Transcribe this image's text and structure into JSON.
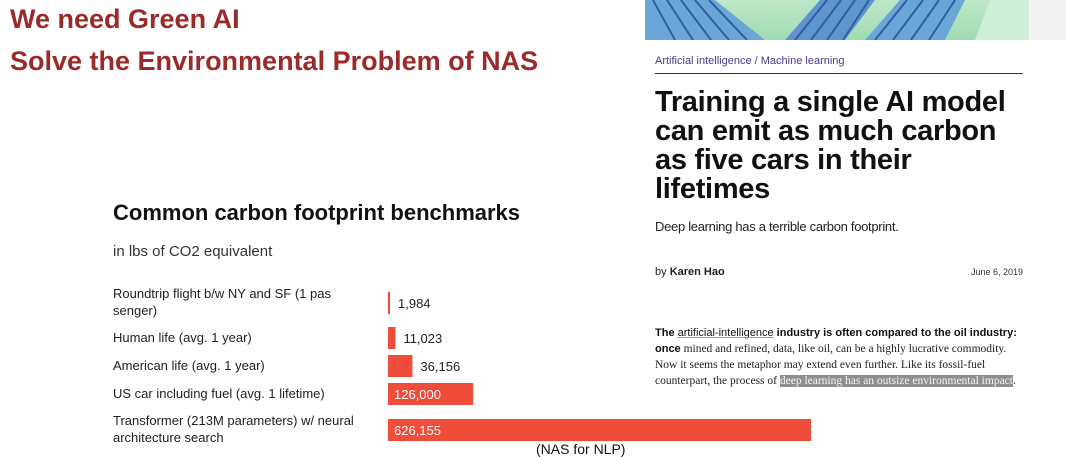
{
  "slide": {
    "title_line1": "We need Green AI",
    "title_line2": "Solve the Environmental Problem of NAS"
  },
  "chart_data": {
    "type": "bar",
    "title": "Common carbon footprint benchmarks",
    "subtitle": "in lbs of CO2 equivalent",
    "categories": [
      "Roundtrip flight b/w NY and SF (1 passenger)",
      "Human life (avg. 1 year)",
      "American life (avg. 1 year)",
      "US car including fuel (avg. 1 lifetime)",
      "Transformer (213M parameters) w/ neural architecture search"
    ],
    "values": [
      1984,
      11023,
      36156,
      126000,
      626155
    ],
    "value_labels": [
      "1,984",
      "11,023",
      "36,156",
      "126,000",
      "626,155"
    ],
    "orientation": "horizontal",
    "bar_color": "#f04c3a",
    "grid": false,
    "note": "(NAS for NLP)"
  },
  "article": {
    "category": "Artificial intelligence / Machine learning",
    "headline": "Training a single AI model can emit as much carbon as five cars in their lifetimes",
    "dek": "Deep learning has a terrible carbon footprint.",
    "byline_prefix": "by ",
    "author": "Karen Hao",
    "date": "June 6, 2019",
    "body_the": "The ",
    "body_link": "artificial-intelligence",
    "body_lead_rest": " industry is often compared to the oil industry: once",
    "body_text": " mined and refined, data, like oil, can be a highly lucrative commodity. Now it seems the metaphor may extend even further. Like its fossil-fuel counterpart, the process of ",
    "body_highlight": "deep learning has an outsize environmental impact",
    "body_end": "."
  },
  "colors": {
    "title": "#9b2a2a",
    "bar": "#f04c3a",
    "category": "#4a3a8c"
  }
}
